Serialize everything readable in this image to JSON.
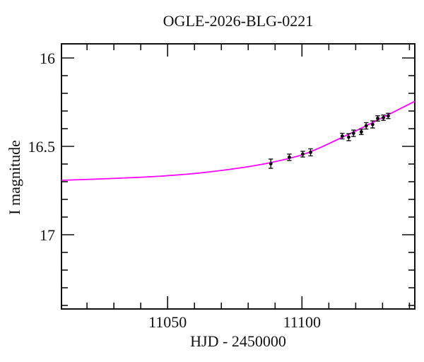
{
  "chart_data": {
    "type": "scatter",
    "title": "OGLE-2026-BLG-0221",
    "xlabel": "HJD - 2450000",
    "ylabel": "I magnitude",
    "xlim": [
      11010.5,
      11142
    ],
    "ylim": [
      17.42,
      15.92
    ],
    "y_axis_inverted": true,
    "grid": false,
    "legend": "none",
    "axis_color": "#111111",
    "background_color": "#ffffff",
    "point_color": "#000000",
    "curve_color": "#ff00ff",
    "x_major_ticks": [
      {
        "value": 11050,
        "label": "11050"
      },
      {
        "value": 11100,
        "label": "11100"
      }
    ],
    "x_minor_tick_step": 10,
    "y_major_ticks": [
      {
        "value": 16,
        "label": "16"
      },
      {
        "value": 16.5,
        "label": "16.5"
      },
      {
        "value": 17,
        "label": "17"
      }
    ],
    "y_minor_tick_step": 0.1,
    "points": [
      {
        "hjd": 11088.4,
        "mag": 16.598,
        "err": 0.026
      },
      {
        "hjd": 11095.3,
        "mag": 16.562,
        "err": 0.018
      },
      {
        "hjd": 11100.3,
        "mag": 16.544,
        "err": 0.016
      },
      {
        "hjd": 11103.2,
        "mag": 16.534,
        "err": 0.02
      },
      {
        "hjd": 11115.0,
        "mag": 16.442,
        "err": 0.016
      },
      {
        "hjd": 11117.4,
        "mag": 16.448,
        "err": 0.02
      },
      {
        "hjd": 11119.2,
        "mag": 16.426,
        "err": 0.018
      },
      {
        "hjd": 11122.1,
        "mag": 16.418,
        "err": 0.015
      },
      {
        "hjd": 11123.9,
        "mag": 16.384,
        "err": 0.018
      },
      {
        "hjd": 11126.3,
        "mag": 16.376,
        "err": 0.02
      },
      {
        "hjd": 11128.2,
        "mag": 16.342,
        "err": 0.015
      },
      {
        "hjd": 11130.3,
        "mag": 16.338,
        "err": 0.015
      },
      {
        "hjd": 11132.1,
        "mag": 16.328,
        "err": 0.015
      }
    ],
    "model_curve": {
      "hjd": [
        11010.5,
        11022,
        11035,
        11048,
        11061,
        11076,
        11088,
        11101,
        11114,
        11127,
        11142
      ],
      "mag": [
        16.692,
        16.686,
        16.678,
        16.668,
        16.652,
        16.624,
        16.593,
        16.543,
        16.456,
        16.36,
        16.245
      ]
    }
  }
}
